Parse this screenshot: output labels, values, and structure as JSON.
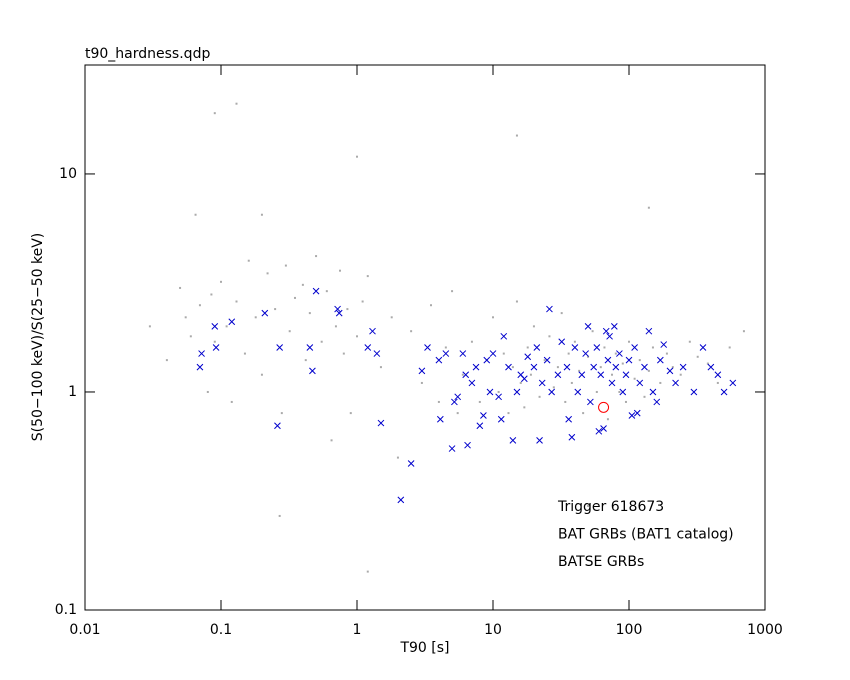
{
  "chart_data": {
    "type": "scatter",
    "title": "t90_hardness.qdp",
    "x_label": "T90 [s]",
    "y_label": "S(50−100 keV)/S(25−50 keV)",
    "xscale": "log",
    "yscale": "log",
    "xlim": [
      0.01,
      1000
    ],
    "ylim": [
      0.1,
      31.6
    ],
    "xticks": [
      0.01,
      0.1,
      1,
      10,
      100,
      1000
    ],
    "yticks": [
      0.1,
      1,
      10
    ],
    "legend": "lower right",
    "series": [
      {
        "name": "Trigger 618673",
        "color": "#ff0000",
        "marker": "circle",
        "x": [
          65
        ],
        "y": [
          0.85
        ]
      },
      {
        "name": "BAT GRBs (BAT1 catalog)",
        "color": "#0000cc",
        "marker": "x",
        "x": [
          0.07,
          0.072,
          0.09,
          0.092,
          0.12,
          0.21,
          0.26,
          0.27,
          0.45,
          0.47,
          0.5,
          0.72,
          0.74,
          1.2,
          1.3,
          1.4,
          1.5,
          2.1,
          2.5,
          3,
          3.3,
          4,
          4.1,
          4.5,
          5,
          5.2,
          5.5,
          6,
          6.3,
          6.5,
          7,
          7.5,
          8,
          8.5,
          9,
          9.5,
          10,
          11,
          11.5,
          12,
          13,
          14,
          15,
          16,
          17,
          18,
          20,
          21,
          22,
          23,
          25,
          26,
          27,
          30,
          32,
          35,
          36,
          38,
          40,
          42,
          45,
          48,
          50,
          52,
          55,
          58,
          60,
          62,
          65,
          68,
          70,
          72,
          75,
          78,
          80,
          85,
          90,
          95,
          100,
          105,
          110,
          115,
          120,
          130,
          140,
          150,
          160,
          170,
          180,
          200,
          220,
          250,
          300,
          350,
          400,
          450,
          500,
          580
        ],
        "y": [
          1.3,
          1.5,
          2.0,
          1.6,
          2.1,
          2.3,
          0.7,
          1.6,
          1.6,
          1.25,
          2.9,
          2.4,
          2.3,
          1.6,
          1.9,
          1.5,
          0.72,
          0.32,
          0.47,
          1.25,
          1.6,
          1.4,
          0.75,
          1.5,
          0.55,
          0.9,
          0.95,
          1.5,
          1.2,
          0.57,
          1.1,
          1.3,
          0.7,
          0.78,
          1.4,
          1.0,
          1.5,
          0.95,
          0.75,
          1.8,
          1.3,
          0.6,
          1.0,
          1.2,
          1.15,
          1.45,
          1.3,
          1.6,
          0.6,
          1.1,
          1.4,
          2.4,
          1.0,
          1.2,
          1.7,
          1.3,
          0.75,
          0.62,
          1.6,
          1.0,
          1.2,
          1.5,
          2.0,
          0.9,
          1.3,
          1.6,
          0.66,
          1.2,
          0.68,
          1.9,
          1.4,
          1.8,
          1.1,
          2.0,
          1.3,
          1.5,
          1.0,
          1.2,
          1.4,
          0.78,
          1.6,
          0.8,
          1.1,
          1.3,
          1.9,
          1.0,
          0.9,
          1.4,
          1.65,
          1.25,
          1.1,
          1.3,
          1.0,
          1.6,
          1.3,
          1.2,
          1.0,
          1.1
        ]
      },
      {
        "name": "BATSE GRBs",
        "color": "#aaaaaa",
        "marker": "dot",
        "x": [
          0.03,
          0.04,
          0.05,
          0.055,
          0.06,
          0.065,
          0.07,
          0.08,
          0.085,
          0.09,
          0.1,
          0.11,
          0.12,
          0.13,
          0.15,
          0.16,
          0.18,
          0.2,
          0.2,
          0.22,
          0.25,
          0.28,
          0.3,
          0.32,
          0.35,
          0.4,
          0.42,
          0.45,
          0.5,
          0.55,
          0.6,
          0.65,
          0.7,
          0.75,
          0.8,
          0.85,
          0.9,
          1.0,
          1.1,
          1.2,
          1.5,
          1.8,
          2,
          2.5,
          3,
          3.5,
          4,
          4.5,
          5,
          5.5,
          6,
          7,
          8,
          9,
          10,
          11,
          12,
          13,
          14,
          15,
          16,
          17,
          18,
          19,
          20,
          22,
          24,
          26,
          28,
          30,
          32,
          34,
          36,
          38,
          40,
          43,
          46,
          50,
          54,
          58,
          62,
          66,
          70,
          75,
          80,
          85,
          90,
          95,
          100,
          110,
          120,
          130,
          140,
          150,
          170,
          190,
          210,
          240,
          280,
          320,
          380,
          450,
          550,
          700,
          0.09,
          0.13,
          0.27,
          1.0,
          1.2,
          15,
          50,
          140
        ],
        "y": [
          2.0,
          1.4,
          3.0,
          2.2,
          1.8,
          6.5,
          2.5,
          1.0,
          2.8,
          1.7,
          3.2,
          2.0,
          0.9,
          2.6,
          1.5,
          4.0,
          2.2,
          6.5,
          1.2,
          3.5,
          2.4,
          0.8,
          3.8,
          1.9,
          2.7,
          3.1,
          1.4,
          2.3,
          4.2,
          1.7,
          2.9,
          0.6,
          2.0,
          3.6,
          1.5,
          2.4,
          0.8,
          1.8,
          2.6,
          3.4,
          1.3,
          2.2,
          0.5,
          1.9,
          1.1,
          2.5,
          0.9,
          1.6,
          2.9,
          0.8,
          1.2,
          1.7,
          0.9,
          1.4,
          2.2,
          1.0,
          1.5,
          0.8,
          1.3,
          2.6,
          1.1,
          0.85,
          1.6,
          1.2,
          2.0,
          0.95,
          1.4,
          1.8,
          1.05,
          1.3,
          2.3,
          0.9,
          1.5,
          1.1,
          1.7,
          1.25,
          0.8,
          1.45,
          1.9,
          1.0,
          1.3,
          1.6,
          0.75,
          1.2,
          1.5,
          1.0,
          1.35,
          0.9,
          1.7,
          1.15,
          1.4,
          0.95,
          1.25,
          1.6,
          1.1,
          1.5,
          1.3,
          1.2,
          1.7,
          1.45,
          1.35,
          1.1,
          1.6,
          1.9,
          19,
          21,
          0.27,
          12,
          0.15,
          15,
          0.3,
          7
        ]
      }
    ]
  }
}
